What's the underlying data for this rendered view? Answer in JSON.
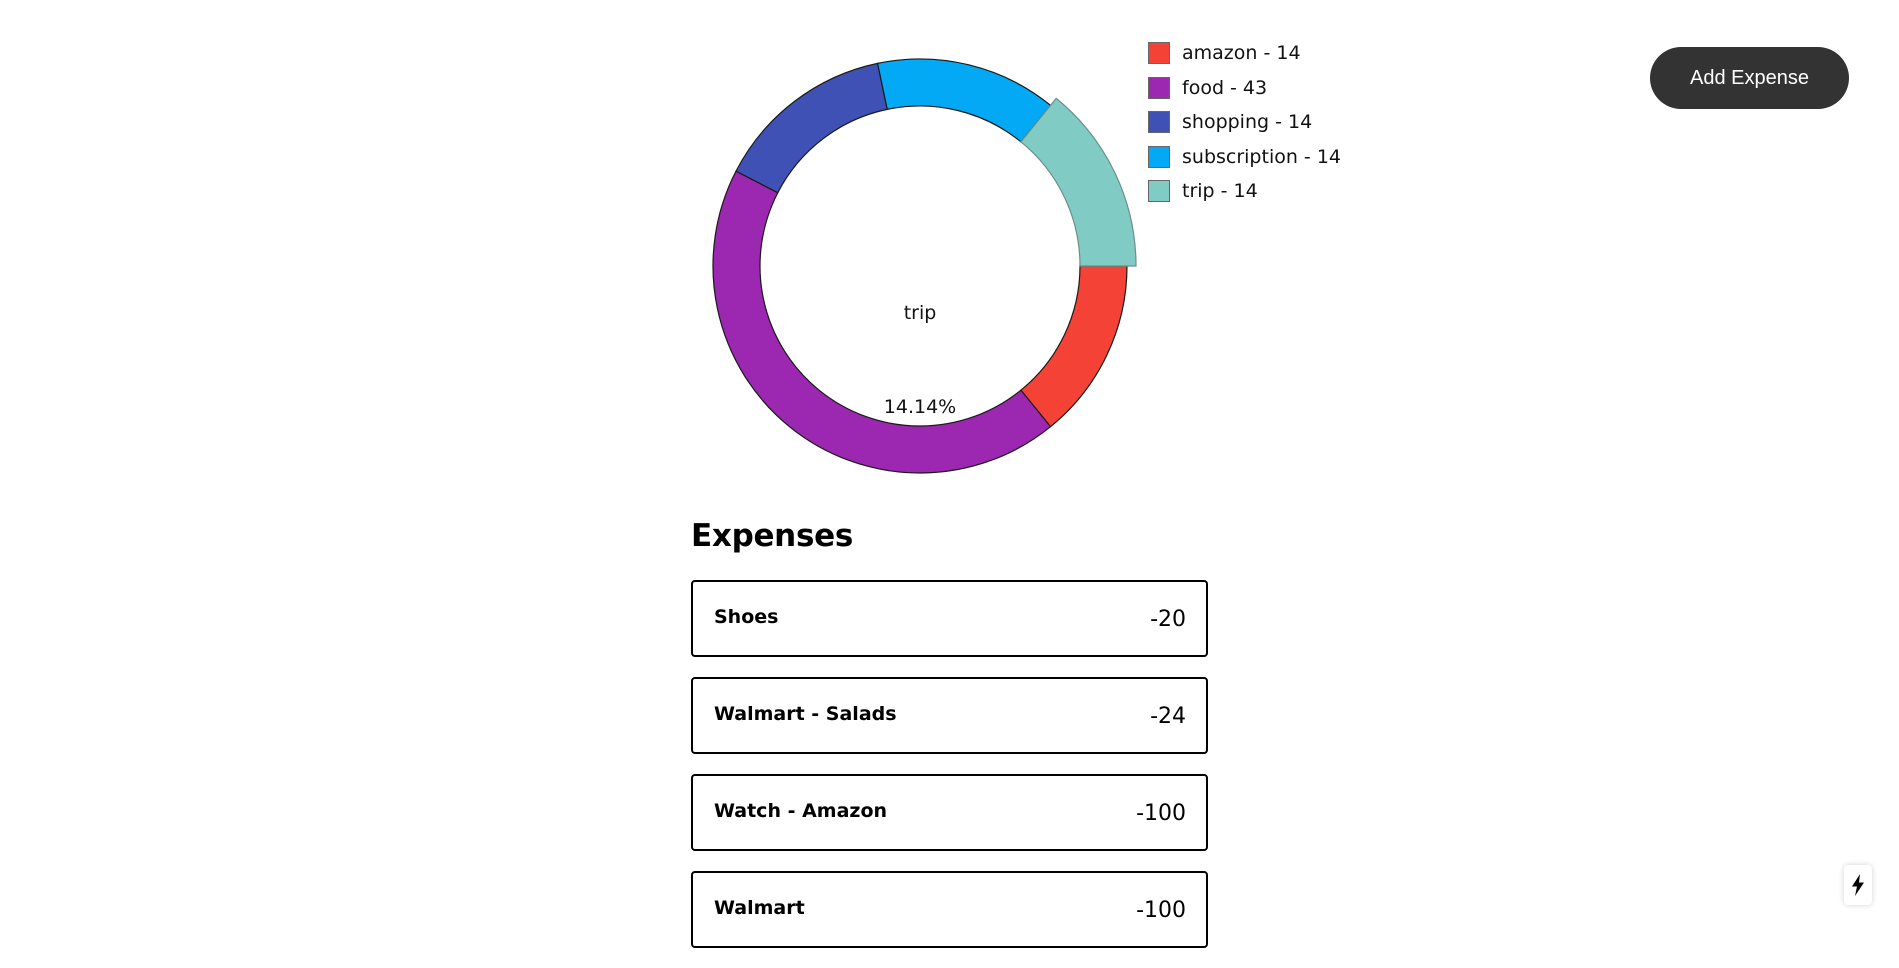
{
  "chart_data": {
    "type": "pie",
    "variant": "donut",
    "categories": [
      "amazon",
      "food",
      "shopping",
      "subscription",
      "trip"
    ],
    "values": [
      14,
      43,
      14,
      14,
      14
    ],
    "colors": [
      "#f44336",
      "#9c27b0",
      "#3f51b5",
      "#03a9f4",
      "#80cbc4"
    ],
    "active_slice": "trip",
    "center_label": "trip",
    "center_value": "14.14%",
    "legend_placement": "right",
    "legend": [
      {
        "label": "amazon - 14",
        "color": "#f44336"
      },
      {
        "label": "food - 43",
        "color": "#9c27b0"
      },
      {
        "label": "shopping - 14",
        "color": "#3f51b5"
      },
      {
        "label": "subscription - 14",
        "color": "#03a9f4"
      },
      {
        "label": "trip - 14",
        "color": "#80cbc4"
      }
    ]
  },
  "header": {
    "add_button_label": "Add Expense"
  },
  "expenses": {
    "title": "Expenses",
    "items": [
      {
        "name": "Shoes",
        "amount": "-20"
      },
      {
        "name": "Walmart - Salads",
        "amount": "-24"
      },
      {
        "name": "Watch - Amazon",
        "amount": "-100"
      },
      {
        "name": "Walmart",
        "amount": "-100"
      }
    ]
  },
  "corner_button": {
    "icon": "lightning-bolt-icon"
  }
}
